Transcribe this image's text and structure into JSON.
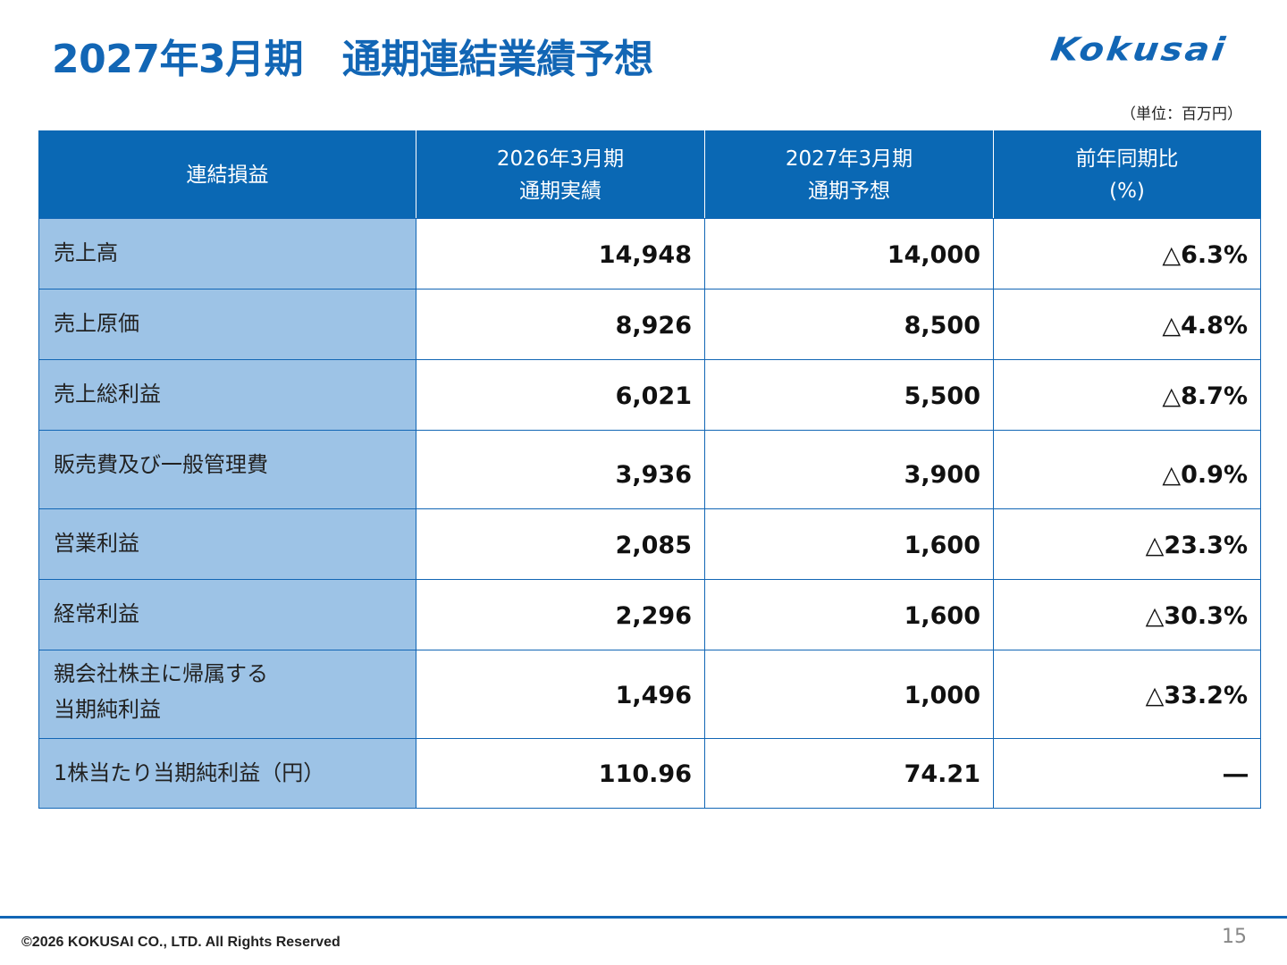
{
  "title": "2027年3月期　通期連結業績予想",
  "logo_text": "Kokusai",
  "unit_note": "（単位：百万円）",
  "table": {
    "headers": [
      {
        "line1": "連結損益",
        "line2": ""
      },
      {
        "line1": "2026年3月期",
        "line2": "通期実績"
      },
      {
        "line1": "2027年3月期",
        "line2": "通期予想"
      },
      {
        "line1": "前年同期比",
        "line2": "(%)"
      }
    ],
    "rows": [
      {
        "label1": "売上高",
        "label2": "",
        "actual": "14,948",
        "forecast": "14,000",
        "yoy": "△6.3%"
      },
      {
        "label1": "売上原価",
        "label2": "",
        "actual": "8,926",
        "forecast": "8,500",
        "yoy": "△4.8%"
      },
      {
        "label1": "売上総利益",
        "label2": "",
        "actual": "6,021",
        "forecast": "5,500",
        "yoy": "△8.7%"
      },
      {
        "label1": "販売費及び一般管理費",
        "label2": "",
        "actual": "3,936",
        "forecast": "3,900",
        "yoy": "△0.9%"
      },
      {
        "label1": "営業利益",
        "label2": "",
        "actual": "2,085",
        "forecast": "1,600",
        "yoy": "△23.3%"
      },
      {
        "label1": "経常利益",
        "label2": "",
        "actual": "2,296",
        "forecast": "1,600",
        "yoy": "△30.3%"
      },
      {
        "label1": "親会社株主に帰属する",
        "label2": "当期純利益",
        "actual": "1,496",
        "forecast": "1,000",
        "yoy": "△33.2%"
      },
      {
        "label1": "1株当たり当期純利益（円）",
        "label2": "",
        "actual": "110.96",
        "forecast": "74.21",
        "yoy": "―"
      }
    ]
  },
  "footer": {
    "copyright": "©2026 KOKUSAI CO., LTD. All Rights Reserved",
    "page_number": "15"
  },
  "colors": {
    "brand_blue": "#1266B5",
    "header_blue": "#0A68B4",
    "label_blue": "#9DC3E6"
  }
}
